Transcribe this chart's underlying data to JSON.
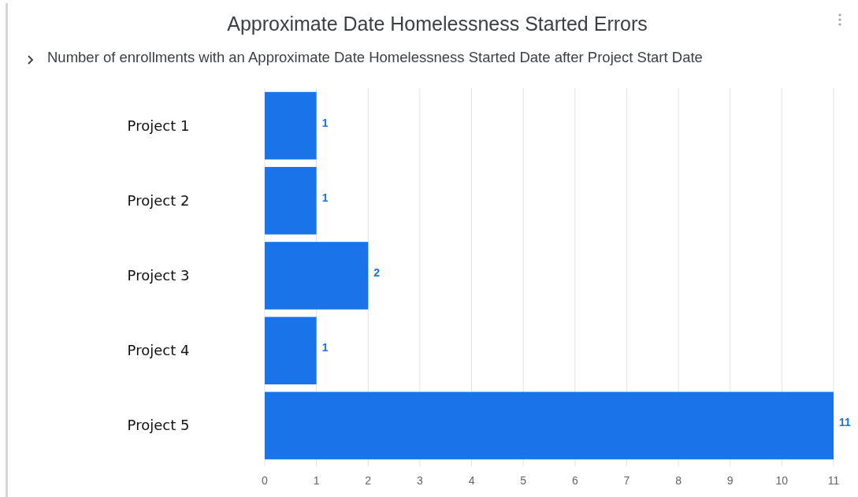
{
  "chart_data": {
    "type": "bar",
    "orientation": "horizontal",
    "title": "Approximate Date Homelessness Started Errors",
    "subtitle": "Number of enrollments with an Approximate Date Homelessness Started Date after Project Start Date",
    "categories": [
      "Project 1",
      "Project 2",
      "Project 3",
      "Project 4",
      "Project 5"
    ],
    "values": [
      1,
      1,
      2,
      1,
      11
    ],
    "color": "#1a73e8",
    "xlim": [
      0,
      11
    ],
    "xticks": [
      0,
      1,
      2,
      3,
      4,
      5,
      6,
      7,
      8,
      9,
      10,
      11
    ],
    "grid": "x",
    "data_labels": true
  }
}
